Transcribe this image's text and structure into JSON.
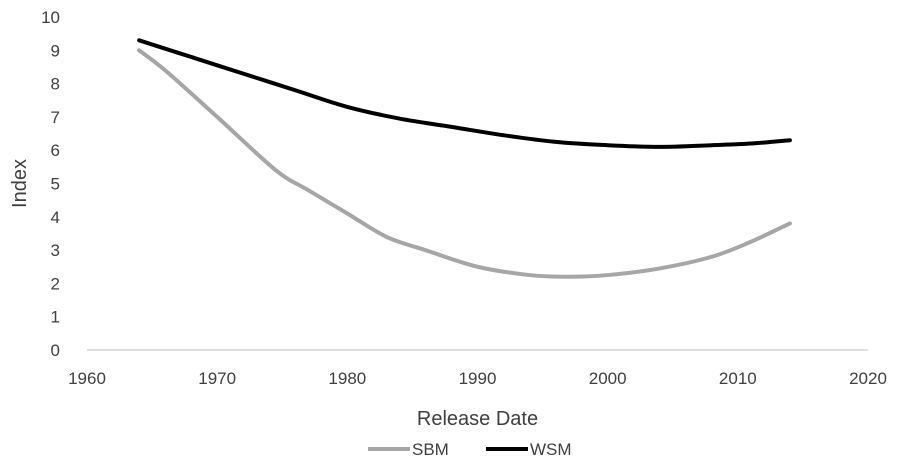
{
  "chart_data": {
    "type": "line",
    "title": "",
    "xlabel": "Release Date",
    "ylabel": "Index",
    "xlim": [
      1960,
      2020
    ],
    "ylim": [
      0,
      10
    ],
    "xticks": [
      1960,
      1970,
      1980,
      1990,
      2000,
      2010,
      2020
    ],
    "yticks": [
      0,
      1,
      2,
      3,
      4,
      5,
      6,
      7,
      8,
      9,
      10
    ],
    "grid": false,
    "legend_position": "bottom",
    "series": [
      {
        "name": "SBM",
        "color": "#a6a6a6",
        "x": [
          1964,
          1966,
          1970,
          1974.5,
          1977,
          1980,
          1983,
          1986,
          1990,
          1994,
          1997,
          2000,
          2004,
          2008,
          2011,
          2014
        ],
        "y": [
          9.0,
          8.4,
          7.0,
          5.4,
          4.8,
          4.1,
          3.4,
          3.0,
          2.5,
          2.25,
          2.2,
          2.25,
          2.45,
          2.8,
          3.25,
          3.8
        ]
      },
      {
        "name": "WSM",
        "color": "#000000",
        "x": [
          1964,
          1968,
          1972,
          1976,
          1980,
          1984,
          1988,
          1992,
          1996,
          2000,
          2004,
          2008,
          2011,
          2014
        ],
        "y": [
          9.3,
          8.8,
          8.3,
          7.8,
          7.3,
          6.95,
          6.7,
          6.45,
          6.25,
          6.15,
          6.1,
          6.15,
          6.2,
          6.3
        ]
      }
    ]
  }
}
